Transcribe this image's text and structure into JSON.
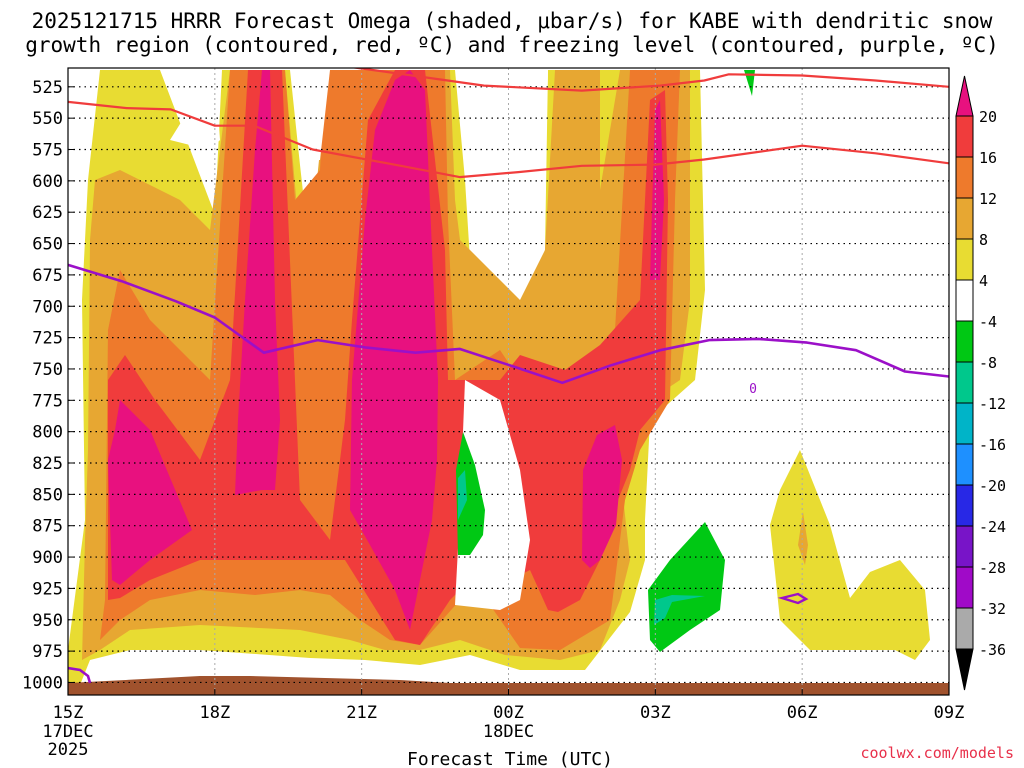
{
  "chart_data": {
    "type": "time-height cross section",
    "title_line1": "2025121715 HRRR Forecast Omega (shaded, μbar/s) for KABE with dendritic snow",
    "title_line2": "growth region (contoured, red, ºC) and freezing level (contoured, purple, ºC)",
    "xlabel": "Forecast Time (UTC)",
    "ylabel": "Pressure (hPa)",
    "credit": "coolwx.com/models",
    "x_ticks": [
      {
        "hour": 0,
        "label": "15Z",
        "sub1": "17DEC",
        "sub2": "2025"
      },
      {
        "hour": 3,
        "label": "18Z",
        "sub1": "",
        "sub2": ""
      },
      {
        "hour": 6,
        "label": "21Z",
        "sub1": "",
        "sub2": ""
      },
      {
        "hour": 9,
        "label": "00Z",
        "sub1": "18DEC",
        "sub2": ""
      },
      {
        "hour": 12,
        "label": "03Z",
        "sub1": "",
        "sub2": ""
      },
      {
        "hour": 15,
        "label": "06Z",
        "sub1": "",
        "sub2": ""
      },
      {
        "hour": 18,
        "label": "09Z",
        "sub1": "",
        "sub2": ""
      }
    ],
    "xlim": [
      0,
      18
    ],
    "y_ticks": [
      "525",
      "550",
      "575",
      "600",
      "625",
      "650",
      "675",
      "700",
      "725",
      "750",
      "775",
      "800",
      "825",
      "850",
      "875",
      "900",
      "925",
      "950",
      "975",
      "1000"
    ],
    "ylim": [
      1010,
      510
    ],
    "colorbar": {
      "labels": [
        "20",
        "16",
        "12",
        "8",
        "4",
        "-4",
        "-8",
        "-12",
        "-16",
        "-20",
        "-24",
        "-28",
        "-32",
        "-36"
      ],
      "colors": [
        "#e8117f",
        "#f03c3c",
        "#ee7a2c",
        "#e7a732",
        "#e8dc32",
        "#ffffff",
        "#00c814",
        "#00c88c",
        "#00b4c8",
        "#1e90ff",
        "#2828e6",
        "#7814c8",
        "#a00ac8",
        "#aaaaaa",
        "#000000"
      ]
    },
    "omega_cells_hour_pressure_value": [
      {
        "hour": 1.0,
        "p": 795,
        "value": 22
      },
      {
        "hour": 3.9,
        "p": 640,
        "value": 22
      },
      {
        "hour": 6.9,
        "p": 730,
        "value": 23
      },
      {
        "hour": 8.0,
        "p": 820,
        "value": -9
      },
      {
        "hour": 10.9,
        "p": 825,
        "value": 20
      },
      {
        "hour": 12.9,
        "p": 560,
        "value": 17
      },
      {
        "hour": 12.9,
        "p": 920,
        "value": -9
      },
      {
        "hour": 15.4,
        "p": 860,
        "value": 7
      },
      {
        "hour": 17.2,
        "p": 925,
        "value": 6
      }
    ],
    "dgz_contours_hour_pressure": [
      [
        [
          0,
          537
        ],
        [
          1.2,
          542
        ],
        [
          2.1,
          543
        ],
        [
          3.0,
          556
        ],
        [
          3.8,
          556
        ],
        [
          5,
          575
        ],
        [
          6.8,
          588
        ],
        [
          8,
          597
        ],
        [
          9.2,
          593
        ],
        [
          10.5,
          588
        ],
        [
          12,
          587
        ],
        [
          13,
          583
        ],
        [
          15,
          572
        ],
        [
          16.5,
          578
        ],
        [
          18,
          586
        ]
      ],
      [
        [
          5,
          505
        ],
        [
          6.3,
          512
        ],
        [
          8.5,
          524
        ],
        [
          10.5,
          528
        ],
        [
          12.1,
          524
        ],
        [
          13,
          520
        ],
        [
          13.5,
          515
        ],
        [
          15,
          516
        ],
        [
          16.5,
          520
        ],
        [
          18,
          525
        ]
      ]
    ],
    "freezing_level_hour_pressure": [
      [
        0,
        667
      ],
      [
        1.1,
        680
      ],
      [
        2.2,
        696
      ],
      [
        3.0,
        709
      ],
      [
        4.0,
        737
      ],
      [
        5.1,
        727
      ],
      [
        6.1,
        733
      ],
      [
        7.1,
        737
      ],
      [
        8.0,
        734
      ],
      [
        9.1,
        748
      ],
      [
        10.1,
        761
      ],
      [
        11.1,
        747
      ],
      [
        12.1,
        735
      ],
      [
        13.1,
        727
      ],
      [
        14.1,
        726
      ],
      [
        15.1,
        729
      ],
      [
        16.1,
        735
      ],
      [
        17.1,
        752
      ],
      [
        18,
        756
      ]
    ],
    "freezing_level_label": "0",
    "terrain_top_hpa": 1008
  }
}
